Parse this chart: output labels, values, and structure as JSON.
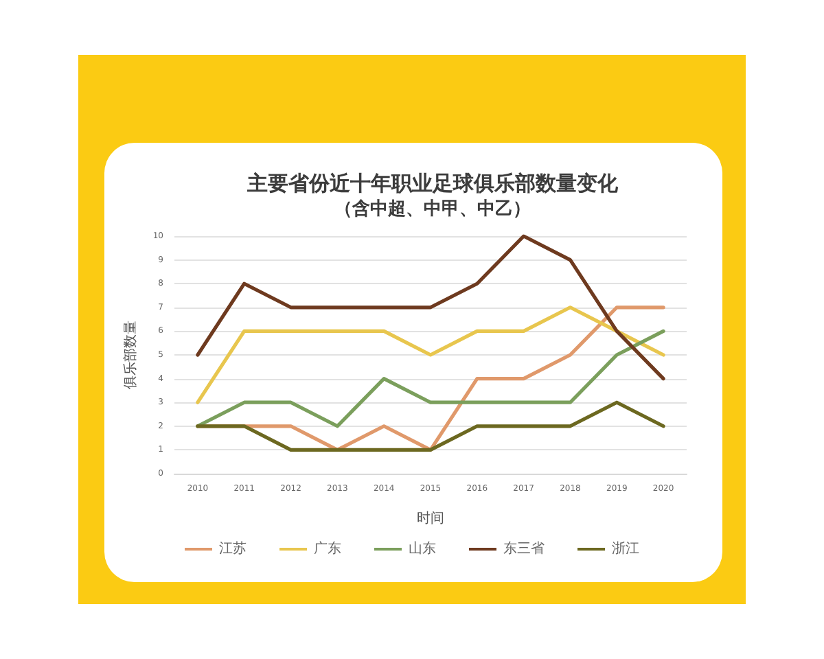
{
  "chart_data": {
    "type": "line",
    "title": "主要省份近十年职业足球俱乐部数量变化",
    "subtitle": "（含中超、中甲、中乙）",
    "xlabel": "时间",
    "ylabel": "俱乐部数量",
    "categories": [
      "2010",
      "2011",
      "2012",
      "2013",
      "2014",
      "2015",
      "2016",
      "2017",
      "2018",
      "2019",
      "2020"
    ],
    "series": [
      {
        "name": "江苏",
        "color": "#e0996b",
        "values": [
          2,
          2,
          2,
          1,
          2,
          1,
          4,
          4,
          5,
          7,
          7
        ]
      },
      {
        "name": "广东",
        "color": "#e8c64e",
        "values": [
          3,
          6,
          6,
          6,
          6,
          5,
          6,
          6,
          7,
          6,
          5
        ]
      },
      {
        "name": "山东",
        "color": "#7b9f5c",
        "values": [
          2,
          3,
          3,
          2,
          4,
          3,
          3,
          3,
          3,
          5,
          6
        ]
      },
      {
        "name": "东三省",
        "color": "#6e3a1f",
        "values": [
          5,
          8,
          7,
          7,
          7,
          7,
          8,
          10,
          9,
          6,
          4
        ]
      },
      {
        "name": "浙江",
        "color": "#6c6820",
        "values": [
          2,
          2,
          1,
          1,
          1,
          1,
          2,
          2,
          2,
          3,
          2
        ]
      }
    ],
    "ylim": [
      0,
      10
    ],
    "yticks": [
      0,
      1,
      2,
      3,
      4,
      5,
      6,
      7,
      8,
      9,
      10
    ],
    "grid": "y",
    "legend": "bottom",
    "marker": "none",
    "line_style": "solid"
  }
}
